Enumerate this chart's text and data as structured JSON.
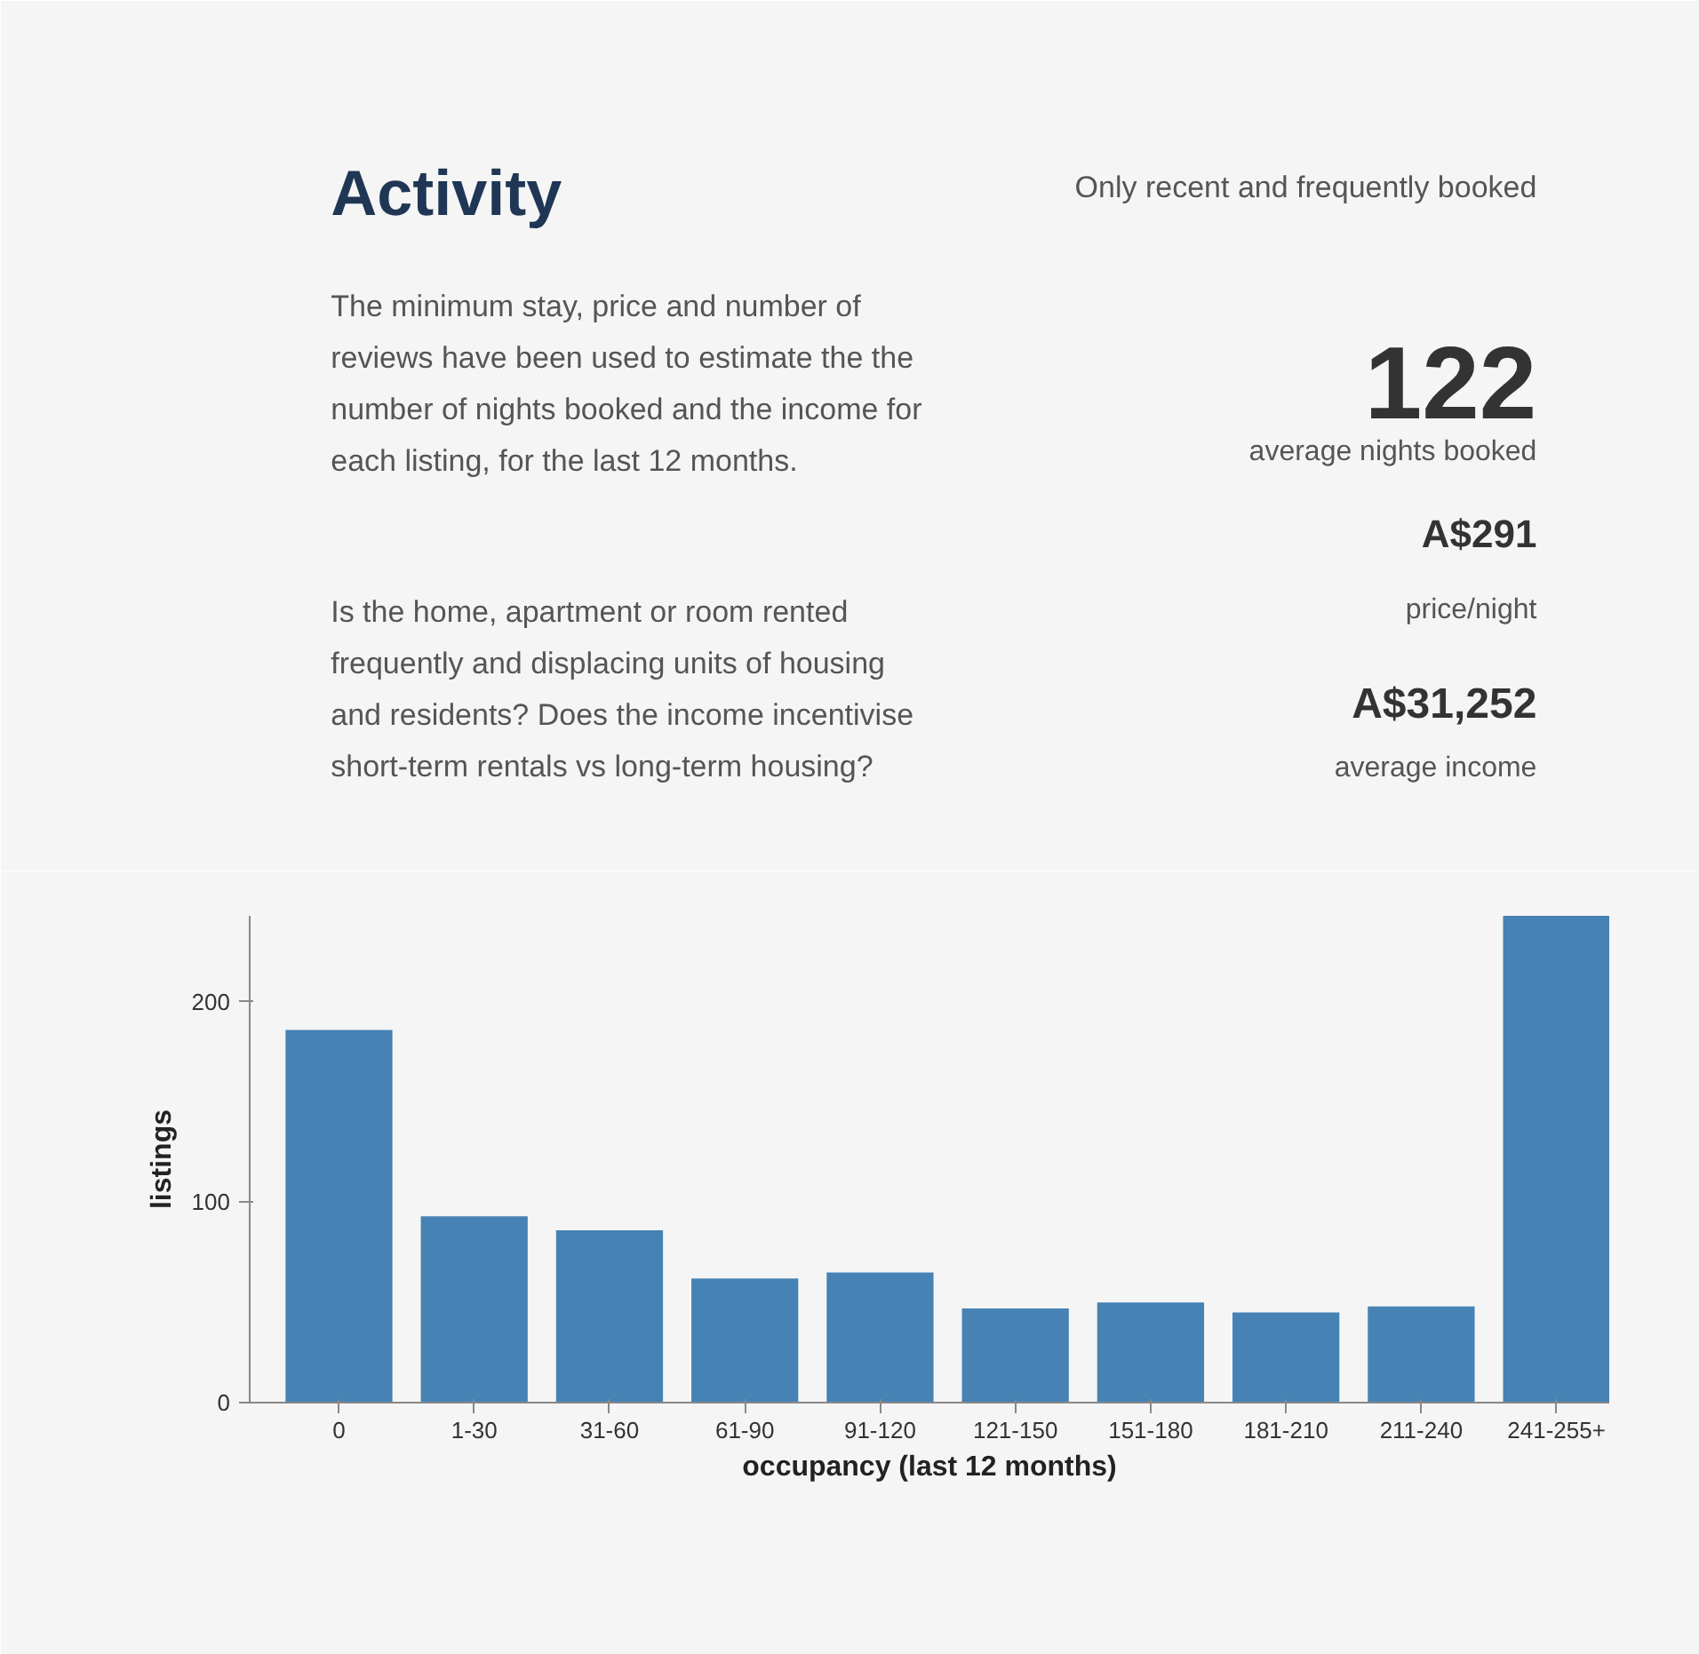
{
  "chart_data": {
    "type": "bar",
    "title": "Activity",
    "annotations": [
      "Only recent and frequently booked",
      "The minimum stay, price and number of reviews have been used to estimate the the number of nights booked and the income for each listing, for the last 12 months.",
      "Is the home, apartment or room rented frequently and displacing units of housing and residents? Does the income incentivise short-term rentals vs long-term housing?",
      "122",
      "average nights booked",
      "A$291",
      "price/night",
      "A$31,252",
      "average income"
    ],
    "categories": [
      "0",
      "1-30",
      "31-60",
      "61-90",
      "91-120",
      "121-150",
      "151-180",
      "181-210",
      "211-240",
      "241-255+"
    ],
    "values": [
      186,
      93,
      86,
      62,
      65,
      47,
      50,
      45,
      48,
      243
    ],
    "color": "#4682b4",
    "xlabel": "occupancy (last 12 months)",
    "ylabel": "listings",
    "ylim": [
      0,
      243
    ],
    "yticks": [
      0,
      100,
      200
    ],
    "grid": false
  }
}
